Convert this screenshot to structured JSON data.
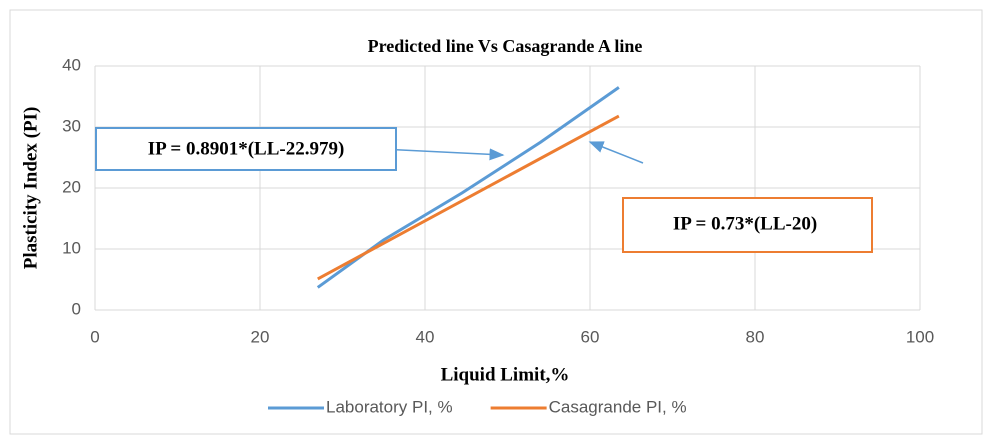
{
  "chart_data": {
    "type": "line",
    "title": "Predicted line Vs Casagrande A line",
    "x_label": "Liquid Limit,%",
    "y_label": "Plasticity Index (PI)",
    "xlim": [
      0,
      100
    ],
    "xticks": [
      0,
      20,
      40,
      60,
      80,
      100
    ],
    "ylim": [
      0,
      40
    ],
    "yticks": [
      0,
      10,
      20,
      30,
      40
    ],
    "grid": true,
    "legend": "bottom",
    "series": [
      {
        "name": "Laboratory PI, %",
        "color": "#5b9bd5",
        "x": [
          27,
          35,
          44.5,
          54,
          63.5
        ],
        "values": [
          3.7,
          11.5,
          19.2,
          27.5,
          36.5
        ]
      },
      {
        "name": "Casagrande PI, %",
        "color": "#ed7d31",
        "x": [
          27,
          63.5
        ],
        "values": [
          5.1,
          31.8
        ]
      }
    ],
    "annotations": [
      {
        "text": "IP = 0.8901*(LL-22.979)",
        "color": "#5b9bd5"
      },
      {
        "text": "IP = 0.73*(LL-20)",
        "color": "#ed7d31"
      }
    ]
  }
}
